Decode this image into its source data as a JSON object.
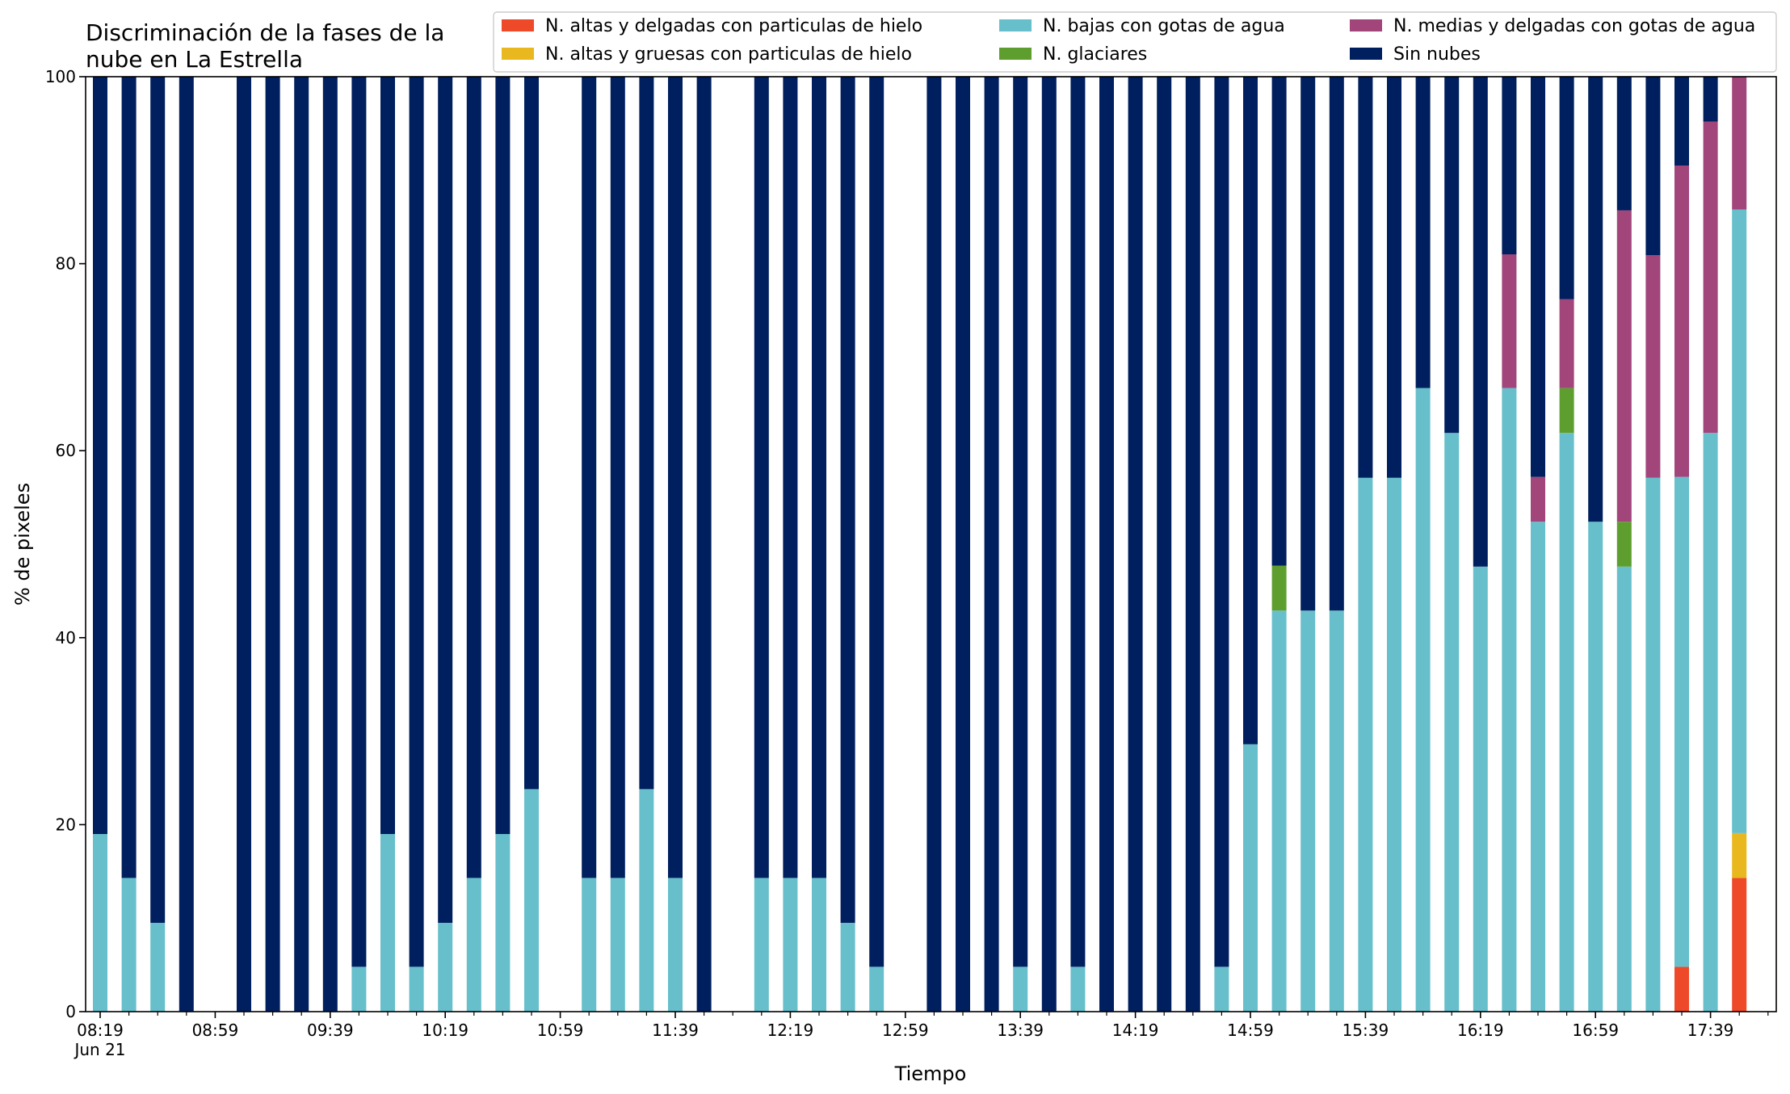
{
  "chart_data": {
    "type": "bar",
    "stacked": true,
    "title_lines": [
      "Discriminación de la fases de la",
      "nube en La Estrella"
    ],
    "xlabel": "Tiempo",
    "ylabel": "% de pixeles",
    "ylim": [
      0,
      100
    ],
    "yticks": [
      0,
      20,
      40,
      60,
      80,
      100
    ],
    "x_minutes_step": 10,
    "x_start_time": "08:19",
    "xticks": [
      {
        "index": 0,
        "label": "08:19",
        "sublabel": "Jun 21"
      },
      {
        "index": 4,
        "label": "08:59"
      },
      {
        "index": 8,
        "label": "09:39"
      },
      {
        "index": 12,
        "label": "10:19"
      },
      {
        "index": 16,
        "label": "10:59"
      },
      {
        "index": 20,
        "label": "11:39"
      },
      {
        "index": 24,
        "label": "12:19"
      },
      {
        "index": 28,
        "label": "12:59"
      },
      {
        "index": 32,
        "label": "13:39"
      },
      {
        "index": 36,
        "label": "14:19"
      },
      {
        "index": 40,
        "label": "14:59"
      },
      {
        "index": 44,
        "label": "15:39"
      },
      {
        "index": 48,
        "label": "16:19"
      },
      {
        "index": 52,
        "label": "16:59"
      },
      {
        "index": 56,
        "label": "17:39"
      }
    ],
    "legend_position": "top-right",
    "series": [
      {
        "name": "N. altas y delgadas con particulas de hielo",
        "color": "#ee4a2a"
      },
      {
        "name": "N. altas y gruesas con particulas de hielo",
        "color": "#e8b81e"
      },
      {
        "name": "N. bajas con gotas de agua",
        "color": "#66bfcb"
      },
      {
        "name": "N. glaciares",
        "color": "#5e9e2e"
      },
      {
        "name": "N. medias y delgadas con gotas de agua",
        "color": "#a1457b"
      },
      {
        "name": "Sin nubes",
        "color": "#001f5e"
      }
    ],
    "bars": [
      {
        "time": "08:19",
        "values": [
          0,
          0,
          19,
          0,
          0,
          81
        ]
      },
      {
        "time": "08:29",
        "values": [
          0,
          0,
          14.3,
          0,
          0,
          85.7
        ]
      },
      {
        "time": "08:39",
        "values": [
          0,
          0,
          9.5,
          0,
          0,
          90.5
        ]
      },
      {
        "time": "08:49",
        "values": [
          0,
          0,
          0,
          0,
          0,
          100
        ]
      },
      {
        "time": "08:59",
        "values": [
          0,
          0,
          0,
          0,
          0,
          0
        ]
      },
      {
        "time": "09:09",
        "values": [
          0,
          0,
          0,
          0,
          0,
          100
        ]
      },
      {
        "time": "09:19",
        "values": [
          0,
          0,
          0,
          0,
          0,
          100
        ]
      },
      {
        "time": "09:29",
        "values": [
          0,
          0,
          0,
          0,
          0,
          100
        ]
      },
      {
        "time": "09:39",
        "values": [
          0,
          0,
          0,
          0,
          0,
          100
        ]
      },
      {
        "time": "09:49",
        "values": [
          0,
          0,
          4.8,
          0,
          0,
          95.2
        ]
      },
      {
        "time": "09:59",
        "values": [
          0,
          0,
          19,
          0,
          0,
          81
        ]
      },
      {
        "time": "10:09",
        "values": [
          0,
          0,
          4.8,
          0,
          0,
          95.2
        ]
      },
      {
        "time": "10:19",
        "values": [
          0,
          0,
          9.5,
          0,
          0,
          90.5
        ]
      },
      {
        "time": "10:29",
        "values": [
          0,
          0,
          14.3,
          0,
          0,
          85.7
        ]
      },
      {
        "time": "10:39",
        "values": [
          0,
          0,
          19,
          0,
          0,
          81
        ]
      },
      {
        "time": "10:49",
        "values": [
          0,
          0,
          23.8,
          0,
          0,
          76.2
        ]
      },
      {
        "time": "10:59",
        "values": [
          0,
          0,
          0,
          0,
          0,
          0
        ]
      },
      {
        "time": "11:09",
        "values": [
          0,
          0,
          14.3,
          0,
          0,
          85.7
        ]
      },
      {
        "time": "11:19",
        "values": [
          0,
          0,
          14.3,
          0,
          0,
          85.7
        ]
      },
      {
        "time": "11:29",
        "values": [
          0,
          0,
          23.8,
          0,
          0,
          76.2
        ]
      },
      {
        "time": "11:39",
        "values": [
          0,
          0,
          14.3,
          0,
          0,
          85.7
        ]
      },
      {
        "time": "11:49",
        "values": [
          0,
          0,
          0,
          0,
          0,
          100
        ]
      },
      {
        "time": "11:59",
        "values": [
          0,
          0,
          0,
          0,
          0,
          0
        ]
      },
      {
        "time": "12:09",
        "values": [
          0,
          0,
          14.3,
          0,
          0,
          85.7
        ]
      },
      {
        "time": "12:19",
        "values": [
          0,
          0,
          14.3,
          0,
          0,
          85.7
        ]
      },
      {
        "time": "12:29",
        "values": [
          0,
          0,
          14.3,
          0,
          0,
          85.7
        ]
      },
      {
        "time": "12:39",
        "values": [
          0,
          0,
          9.5,
          0,
          0,
          90.5
        ]
      },
      {
        "time": "12:49",
        "values": [
          0,
          0,
          4.8,
          0,
          0,
          95.2
        ]
      },
      {
        "time": "12:59",
        "values": [
          0,
          0,
          0,
          0,
          0,
          0
        ]
      },
      {
        "time": "13:09",
        "values": [
          0,
          0,
          0,
          0,
          0,
          100
        ]
      },
      {
        "time": "13:19",
        "values": [
          0,
          0,
          0,
          0,
          0,
          100
        ]
      },
      {
        "time": "13:29",
        "values": [
          0,
          0,
          0,
          0,
          0,
          100
        ]
      },
      {
        "time": "13:39",
        "values": [
          0,
          0,
          4.8,
          0,
          0,
          95.2
        ]
      },
      {
        "time": "13:49",
        "values": [
          0,
          0,
          0,
          0,
          0,
          100
        ]
      },
      {
        "time": "13:59",
        "values": [
          0,
          0,
          4.8,
          0,
          0,
          95.2
        ]
      },
      {
        "time": "14:09",
        "values": [
          0,
          0,
          0,
          0,
          0,
          100
        ]
      },
      {
        "time": "14:19",
        "values": [
          0,
          0,
          0,
          0,
          0,
          100
        ]
      },
      {
        "time": "14:29",
        "values": [
          0,
          0,
          0,
          0,
          0,
          100
        ]
      },
      {
        "time": "14:39",
        "values": [
          0,
          0,
          0,
          0,
          0,
          100
        ]
      },
      {
        "time": "14:49",
        "values": [
          0,
          0,
          4.8,
          0,
          0,
          95.2
        ]
      },
      {
        "time": "14:59",
        "values": [
          0,
          0,
          28.6,
          0,
          0,
          71.4
        ]
      },
      {
        "time": "15:09",
        "values": [
          0,
          0,
          42.9,
          4.8,
          0,
          52.3
        ]
      },
      {
        "time": "15:19",
        "values": [
          0,
          0,
          42.9,
          0,
          0,
          57.1
        ]
      },
      {
        "time": "15:29",
        "values": [
          0,
          0,
          42.9,
          0,
          0,
          57.1
        ]
      },
      {
        "time": "15:39",
        "values": [
          0,
          0,
          57.1,
          0,
          0,
          42.9
        ]
      },
      {
        "time": "15:49",
        "values": [
          0,
          0,
          57.1,
          0,
          0,
          42.9
        ]
      },
      {
        "time": "15:59",
        "values": [
          0,
          0,
          66.7,
          0,
          0,
          33.3
        ]
      },
      {
        "time": "16:09",
        "values": [
          0,
          0,
          61.9,
          0,
          0,
          38.1
        ]
      },
      {
        "time": "16:19",
        "values": [
          0,
          0,
          47.6,
          0,
          0,
          52.4
        ]
      },
      {
        "time": "16:29",
        "values": [
          0,
          0,
          66.7,
          0,
          14.3,
          19
        ]
      },
      {
        "time": "16:39",
        "values": [
          0,
          0,
          52.4,
          0,
          4.8,
          42.8
        ]
      },
      {
        "time": "16:49",
        "values": [
          0,
          0,
          61.9,
          4.8,
          9.5,
          23.8
        ]
      },
      {
        "time": "16:59",
        "values": [
          0,
          0,
          52.4,
          0,
          0,
          47.6
        ]
      },
      {
        "time": "17:09",
        "values": [
          0,
          0,
          47.6,
          4.8,
          33.3,
          14.3
        ]
      },
      {
        "time": "17:19",
        "values": [
          0,
          0,
          57.1,
          0,
          23.8,
          19.1
        ]
      },
      {
        "time": "17:29",
        "values": [
          4.8,
          0,
          52.4,
          0,
          33.3,
          9.5
        ]
      },
      {
        "time": "17:39",
        "values": [
          0,
          0,
          61.9,
          0,
          33.3,
          4.8
        ]
      },
      {
        "time": "17:49",
        "values": [
          14.3,
          4.8,
          66.7,
          0,
          14.2,
          0
        ]
      }
    ]
  }
}
